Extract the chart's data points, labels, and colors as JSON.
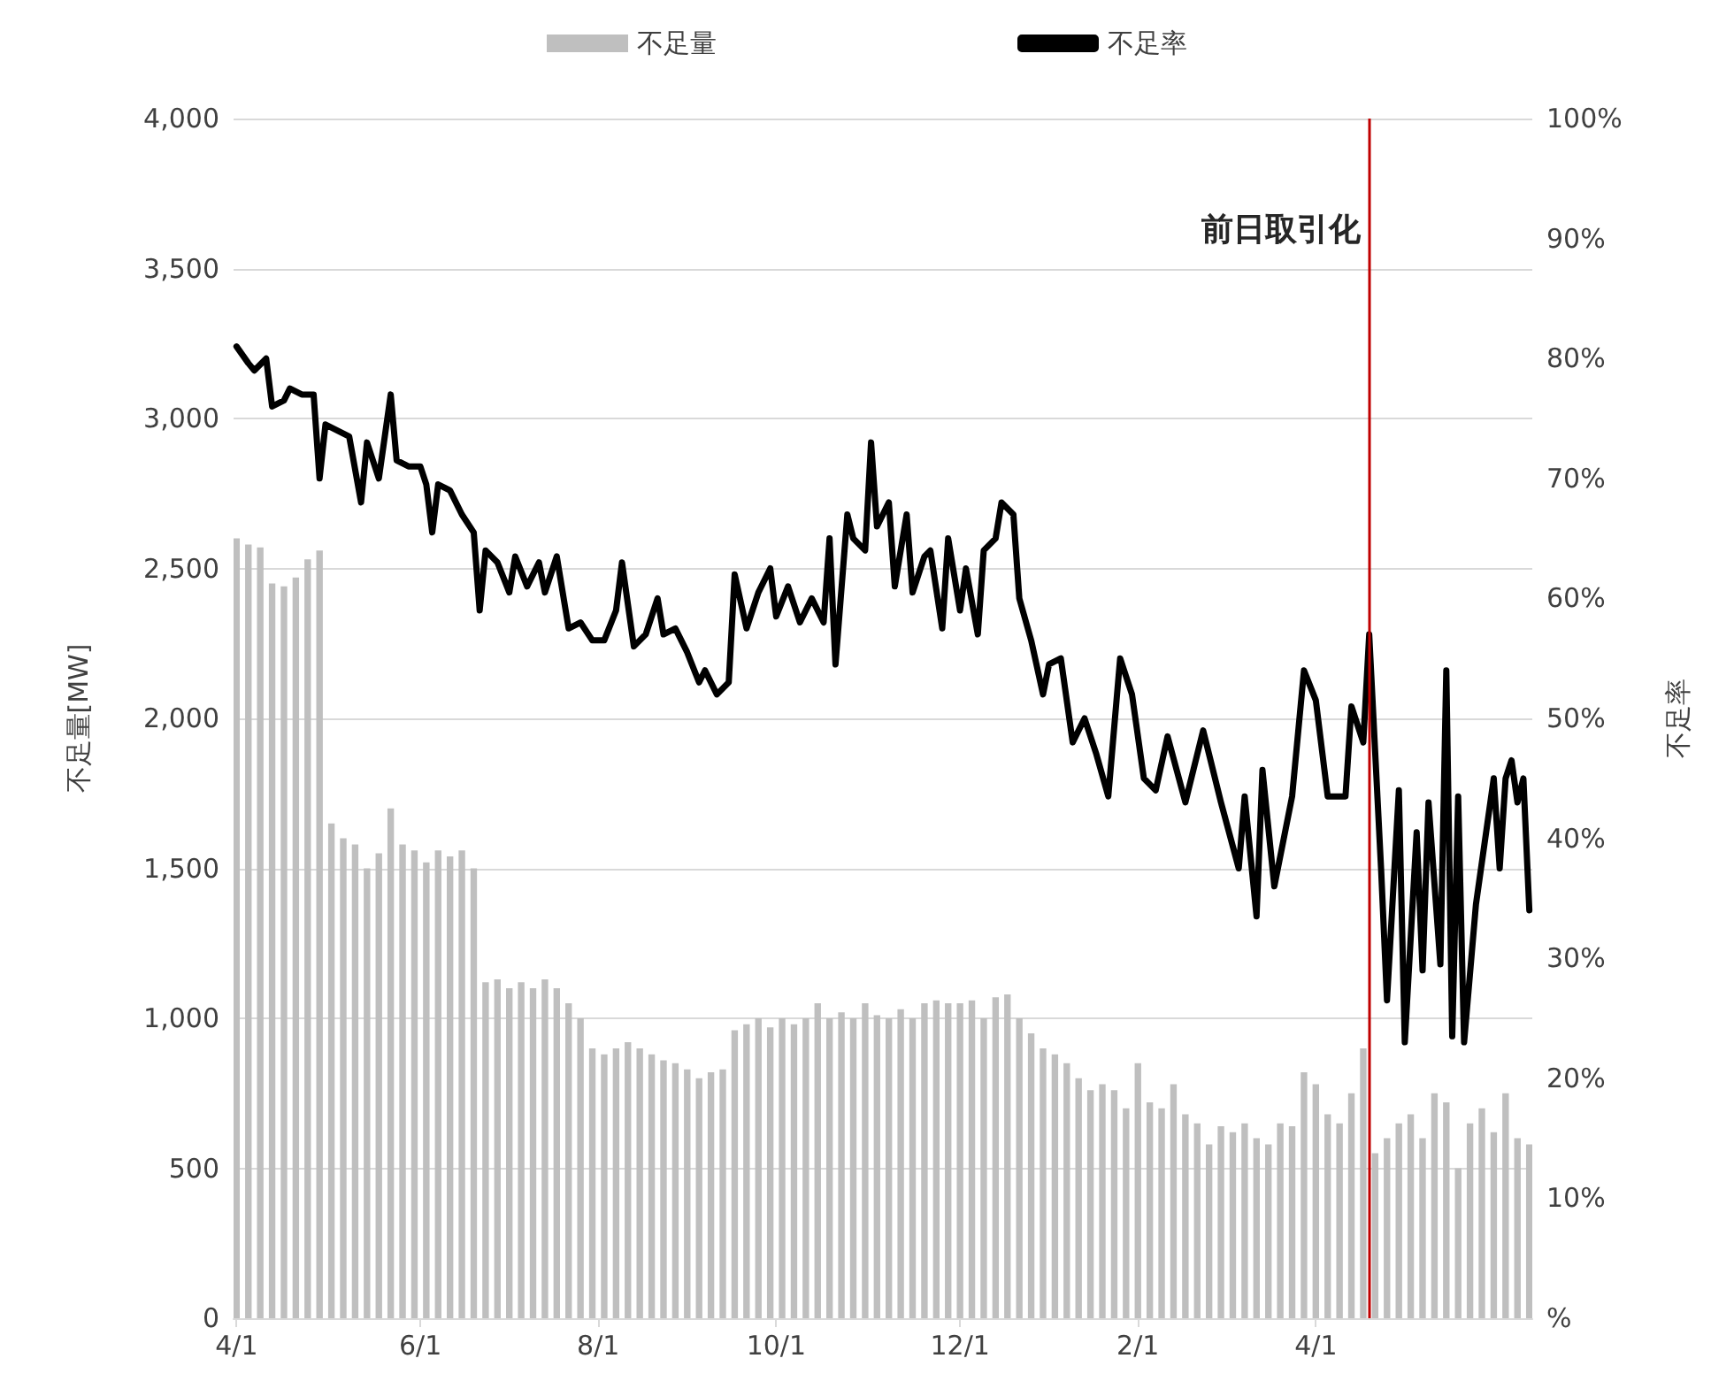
{
  "chart_data": {
    "type": "bar",
    "ylabel": "不足量[MW]",
    "y2label": "不足率",
    "legend": "top",
    "grid": "y",
    "categories": [
      "4/1",
      null,
      null,
      null,
      null,
      null,
      null,
      null,
      null,
      null,
      null,
      null,
      null,
      null,
      null,
      null,
      null,
      null,
      null,
      null,
      null,
      null,
      null,
      null,
      null,
      null,
      null,
      null,
      null,
      null,
      null,
      "6/1",
      null,
      null,
      null,
      null,
      null,
      null,
      null,
      null,
      null,
      null,
      null,
      null,
      null,
      null,
      null,
      null,
      null,
      null,
      null,
      null,
      null,
      null,
      null,
      null,
      null,
      null,
      null,
      null,
      null,
      "8/1",
      null,
      null,
      null,
      null,
      null,
      null,
      null,
      null,
      null,
      null,
      null,
      null,
      null,
      null,
      null,
      null,
      null,
      null,
      null,
      null,
      null,
      null,
      null,
      null,
      null,
      null,
      null,
      null,
      null,
      "10/1",
      null,
      null,
      null,
      null,
      null,
      null,
      null,
      null,
      null,
      null,
      null,
      null,
      null,
      null,
      null,
      null,
      null,
      null,
      null,
      null,
      null,
      null,
      null,
      null,
      null,
      null,
      null,
      null,
      null,
      null,
      "12/1",
      null,
      null,
      null,
      null,
      null,
      null,
      null,
      null,
      null,
      null,
      null,
      null,
      null,
      null,
      null,
      null,
      null,
      null,
      null,
      null,
      null,
      null,
      null,
      null,
      null,
      null,
      null,
      null,
      null,
      "2/1",
      null,
      null,
      null,
      null,
      null,
      null,
      null,
      null,
      null,
      null,
      null,
      null,
      null,
      null,
      null,
      null,
      null,
      null,
      null,
      null,
      null,
      null,
      null,
      null,
      null,
      null,
      null,
      null,
      null,
      "4/1",
      null,
      null,
      null,
      null,
      null,
      null,
      null,
      null,
      null,
      null,
      null,
      null,
      null,
      null,
      null,
      null,
      null,
      null,
      null,
      null,
      null,
      null,
      null,
      null,
      null,
      null,
      null,
      null,
      null,
      null,
      null,
      null,
      null,
      null,
      null,
      null
    ],
    "ylim": [
      0,
      4000
    ],
    "yticks": [
      0,
      {
        "value": 500,
        "label": "500"
      },
      {
        "value": 1000,
        "label": "1,000"
      },
      {
        "value": 1500,
        "label": "1,500"
      },
      {
        "value": 2000,
        "label": "2,000"
      },
      {
        "value": 2500,
        "label": "2,500"
      },
      {
        "value": 3000,
        "label": "3,000"
      },
      {
        "value": 3500,
        "label": "3,500"
      },
      {
        "value": 4000,
        "label": "4,000"
      }
    ],
    "y2lim": [
      0,
      100
    ],
    "y2ticks": [
      {
        "value": 0,
        "label": "%"
      },
      {
        "value": 10,
        "label": "10%"
      },
      {
        "value": 20,
        "label": "20%"
      },
      {
        "value": 30,
        "label": "30%"
      },
      {
        "value": 40,
        "label": "40%"
      },
      {
        "value": 50,
        "label": "50%"
      },
      {
        "value": 60,
        "label": "60%"
      },
      {
        "value": 70,
        "label": "70%"
      },
      {
        "value": 80,
        "label": "80%"
      },
      {
        "value": 90,
        "label": "90%"
      },
      {
        "value": 100,
        "label": "100%"
      }
    ],
    "ref_lines": [
      {
        "axis": "x",
        "label": "前日取引化",
        "color": "#c00000"
      }
    ],
    "series": [
      {
        "name": "不足量",
        "color": "#bfbfbf",
        "values": [
          2600,
          null,
          2580,
          null,
          2570,
          null,
          2450,
          null,
          2440,
          null,
          2470,
          null,
          2530,
          null,
          2560,
          null,
          1650,
          null,
          1600,
          null,
          1580,
          null,
          1500,
          null,
          1550,
          null,
          1700,
          null,
          1580,
          null,
          1560,
          null,
          1520,
          null,
          1560,
          null,
          1540,
          null,
          1560,
          null,
          1500,
          null,
          1120,
          null,
          1130,
          null,
          1100,
          null,
          1120,
          null,
          1100,
          null,
          1130,
          null,
          1100,
          null,
          1050,
          null,
          1000,
          null,
          900,
          null,
          880,
          null,
          900,
          null,
          920,
          null,
          900,
          null,
          880,
          null,
          860,
          null,
          850,
          null,
          830,
          null,
          800,
          null,
          820,
          null,
          830,
          null,
          960,
          null,
          980,
          null,
          1000,
          null,
          970,
          null,
          1000,
          null,
          980,
          null,
          1000,
          null,
          1050,
          null,
          1000,
          null,
          1020,
          null,
          1000,
          null,
          1050,
          null,
          1010,
          null,
          1000,
          null,
          1030,
          null,
          1000,
          null,
          1050,
          null,
          1060,
          null,
          1050,
          null,
          1050,
          null,
          1060,
          null,
          1000,
          null,
          1070,
          null,
          1080,
          null,
          1000,
          null,
          950,
          null,
          900,
          null,
          880,
          null,
          850,
          null,
          800,
          null,
          760,
          null,
          780,
          null,
          760,
          null,
          700,
          null,
          850,
          null,
          720,
          null,
          700,
          null,
          780,
          null,
          680,
          null,
          650,
          null,
          580,
          null,
          640,
          null,
          620,
          null,
          650,
          null,
          600,
          null,
          580,
          null,
          650,
          null,
          640,
          null,
          820,
          null,
          780,
          null,
          680,
          null,
          650,
          null,
          750,
          null,
          900,
          null,
          550,
          null,
          600,
          null,
          650,
          null,
          680,
          null,
          600,
          null,
          750,
          null,
          720,
          null,
          500,
          null,
          650,
          null,
          700,
          null,
          620,
          null,
          750,
          null,
          600,
          null,
          580
        ]
      },
      {
        "name": "不足率",
        "type": "line",
        "axis": "y2",
        "color": "#000000",
        "marker": "none",
        "line_style": "solid",
        "values": [
          81,
          null,
          79.6,
          79,
          null,
          80,
          76,
          null,
          76.5,
          77.5,
          null,
          77,
          null,
          77,
          70,
          74.5,
          null,
          74,
          null,
          73.5,
          null,
          68,
          73,
          null,
          70,
          null,
          77,
          71.5,
          null,
          71,
          null,
          71,
          69.5,
          65.5,
          69.5,
          null,
          69,
          null,
          67,
          null,
          65.5,
          59,
          64,
          null,
          63,
          null,
          60.5,
          63.5,
          null,
          61,
          null,
          63,
          60.5,
          null,
          63.5,
          null,
          57.5,
          null,
          58,
          null,
          56.5,
          null,
          56.5,
          null,
          59,
          63,
          null,
          56,
          null,
          57,
          null,
          60,
          57,
          null,
          57.5,
          null,
          55.5,
          null,
          53,
          54,
          null,
          52,
          null,
          53,
          62,
          null,
          57.5,
          null,
          60.5,
          null,
          62.5,
          58.5,
          null,
          61,
          null,
          58,
          null,
          60,
          null,
          58,
          65,
          54.5,
          null,
          67,
          65,
          null,
          64,
          73,
          66,
          null,
          68,
          61,
          null,
          67,
          60.5,
          null,
          63.5,
          64,
          null,
          57.5,
          65,
          null,
          59,
          62.5,
          null,
          57,
          64,
          null,
          65,
          68,
          null,
          67,
          60,
          null,
          56.5,
          null,
          52,
          54.5,
          null,
          55,
          null,
          48,
          null,
          50,
          null,
          47,
          null,
          43.5,
          null,
          55,
          null,
          52,
          null,
          45,
          null,
          44,
          null,
          48.5,
          null,
          null,
          43,
          null,
          null,
          49,
          null,
          null,
          43,
          null,
          null,
          37.5,
          43.5,
          null,
          33.5,
          45.7,
          null,
          36,
          null,
          null,
          43.5,
          null,
          54,
          null,
          51.5,
          null,
          43.5,
          null,
          null,
          43.5,
          51,
          null,
          48,
          57,
          null,
          37.5,
          26.5,
          null,
          44,
          23,
          null,
          40.5,
          29,
          43,
          null,
          29.5,
          54,
          23.5,
          43.5,
          23,
          null,
          34.5,
          null,
          null,
          45,
          37.5,
          45,
          46.5,
          43,
          45,
          34
        ]
      }
    ]
  }
}
